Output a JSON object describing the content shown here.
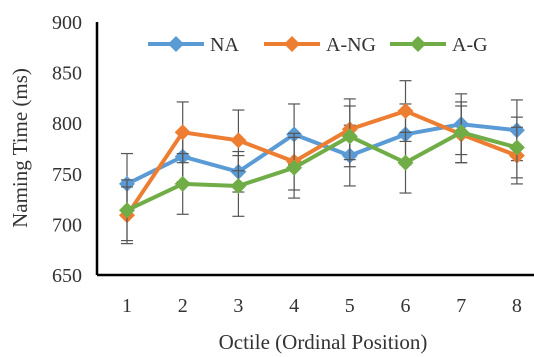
{
  "chart_data": {
    "type": "line",
    "title": "",
    "xlabel": "Octile (Ordinal Position)",
    "ylabel": "Naming Time (ms)",
    "x": [
      1,
      2,
      3,
      4,
      5,
      6,
      7,
      8
    ],
    "x_tick_labels": [
      "1",
      "2",
      "3",
      "4",
      "5",
      "6",
      "7",
      "8"
    ],
    "ylim": [
      650,
      900
    ],
    "y_ticks": [
      650,
      700,
      750,
      800,
      850,
      900
    ],
    "y_tick_labels": [
      "650",
      "700",
      "750",
      "800",
      "850",
      "900"
    ],
    "grid": false,
    "legend_position": "top",
    "error_bars": true,
    "series": [
      {
        "name": "NA",
        "color": "#5b9bd5",
        "marker": "diamond",
        "values": [
          740,
          767,
          752,
          789,
          768,
          789,
          799,
          793
        ],
        "errors": [
          30,
          25,
          20,
          30,
          30,
          30,
          30,
          30
        ]
      },
      {
        "name": "A-NG",
        "color": "#ed7d31",
        "marker": "diamond",
        "values": [
          709,
          791,
          783,
          762,
          794,
          812,
          789,
          768
        ],
        "errors": [
          28,
          30,
          30,
          28,
          30,
          30,
          28,
          28
        ]
      },
      {
        "name": "A-G",
        "color": "#70ad47",
        "marker": "diamond",
        "values": [
          714,
          740,
          738,
          756,
          787,
          761,
          791,
          776
        ],
        "errors": [
          30,
          30,
          30,
          30,
          30,
          30,
          30,
          30
        ]
      }
    ]
  }
}
